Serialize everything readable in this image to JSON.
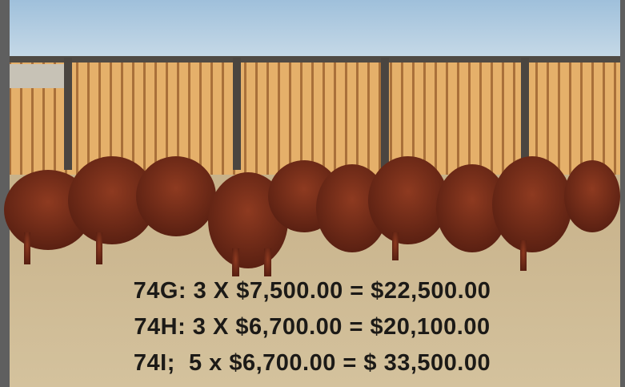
{
  "caption": {
    "lines": [
      "74G: 3 X $7,500.00 = $22,500.00",
      "74H: 3 X $6,700.00 = $20,100.00",
      "74I;  5 x $6,700.00 = $ 33,500.00"
    ]
  }
}
